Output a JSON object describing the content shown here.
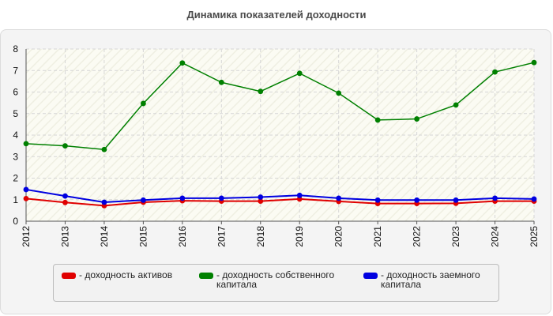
{
  "chart_data": {
    "type": "line",
    "title": "Динамика показателей доходности",
    "xlabel": "",
    "ylabel": "",
    "x": [
      2012,
      2013,
      2014,
      2015,
      2016,
      2017,
      2018,
      2019,
      2020,
      2021,
      2022,
      2023,
      2024,
      2025
    ],
    "ylim": [
      0,
      8
    ],
    "yticks": [
      0,
      1,
      2,
      3,
      4,
      5,
      6,
      7,
      8
    ],
    "grid": true,
    "legend_position": "bottom",
    "series": [
      {
        "name": "- доходность активов",
        "color": "#e00000",
        "values": [
          1.05,
          0.87,
          0.72,
          0.88,
          0.95,
          0.93,
          0.93,
          1.03,
          0.92,
          0.82,
          0.82,
          0.83,
          0.93,
          0.93
        ]
      },
      {
        "name": "- доходность собственного капитала",
        "color": "#008000",
        "values": [
          3.6,
          3.5,
          3.33,
          5.47,
          7.35,
          6.45,
          6.03,
          6.87,
          5.95,
          4.7,
          4.75,
          5.4,
          6.93,
          7.37
        ]
      },
      {
        "name": "- доходность заемного капитала",
        "color": "#0000e0",
        "values": [
          1.47,
          1.17,
          0.88,
          0.98,
          1.07,
          1.07,
          1.12,
          1.2,
          1.07,
          0.98,
          0.98,
          0.98,
          1.07,
          1.03
        ]
      }
    ]
  }
}
